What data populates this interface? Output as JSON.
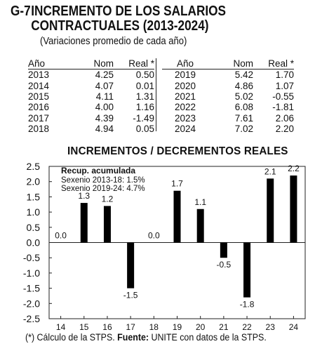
{
  "header": {
    "figure_number": "G-7",
    "title_line1": "INCREMENTO DE LOS SALARIOS",
    "title_line2": "CONTRACTUALES (2013-2024)",
    "subtitle": "(Variaciones promedio de cada año)"
  },
  "table": {
    "columns": [
      "Año",
      "Nom",
      "Real *"
    ],
    "left_rows": [
      [
        "2013",
        "4.25",
        "0.50"
      ],
      [
        "2014",
        "4.07",
        "0.01"
      ],
      [
        "2015",
        "4.11",
        "1.31"
      ],
      [
        "2016",
        "4.00",
        "1.16"
      ],
      [
        "2017",
        "4.39",
        "-1.49"
      ],
      [
        "2018",
        "4.94",
        "0.05"
      ]
    ],
    "right_rows": [
      [
        "2019",
        "5.42",
        "1.70"
      ],
      [
        "2020",
        "4.86",
        "1.07"
      ],
      [
        "2021",
        "5.02",
        "-0.55"
      ],
      [
        "2022",
        "6.08",
        "-1.81"
      ],
      [
        "2023",
        "7.61",
        "2.06"
      ],
      [
        "2024",
        "7.02",
        "2.20"
      ]
    ]
  },
  "chart_data": {
    "type": "bar",
    "title": "INCREMENTOS / DECREMENTOS REALES",
    "categories": [
      "14",
      "15",
      "16",
      "17",
      "18",
      "19",
      "20",
      "21",
      "22",
      "23",
      "24"
    ],
    "values": [
      0.0,
      1.3,
      1.2,
      -1.5,
      0.0,
      1.7,
      1.1,
      -0.5,
      -1.8,
      2.1,
      2.2
    ],
    "value_labels": [
      "0.0",
      "1.3",
      "1.2",
      "-1.5",
      "0.0",
      "1.7",
      "1.1",
      "-0.5",
      "-1.8",
      "2.1",
      "2.2"
    ],
    "ylim": [
      -2.5,
      2.5
    ],
    "yticks": [
      "2.5",
      "2.0",
      "1.5",
      "1.0",
      "0.5",
      "0.0",
      "-0.5",
      "-1.0",
      "-1.5",
      "-2.0",
      "-2.5"
    ],
    "xlabel": "",
    "ylabel": "",
    "bar_color": "#000000",
    "grid": false,
    "legend": {
      "heading": "Recup. acumulada",
      "line1": "Sexenio 2013-18:  1.5%",
      "line2": "Sexenio 2019-24:  4.7%"
    }
  },
  "footnote": {
    "note": "(*) Cálculo de la STPS.",
    "source_label": "Fuente:",
    "source_text": "UNITE con datos de la STPS."
  }
}
